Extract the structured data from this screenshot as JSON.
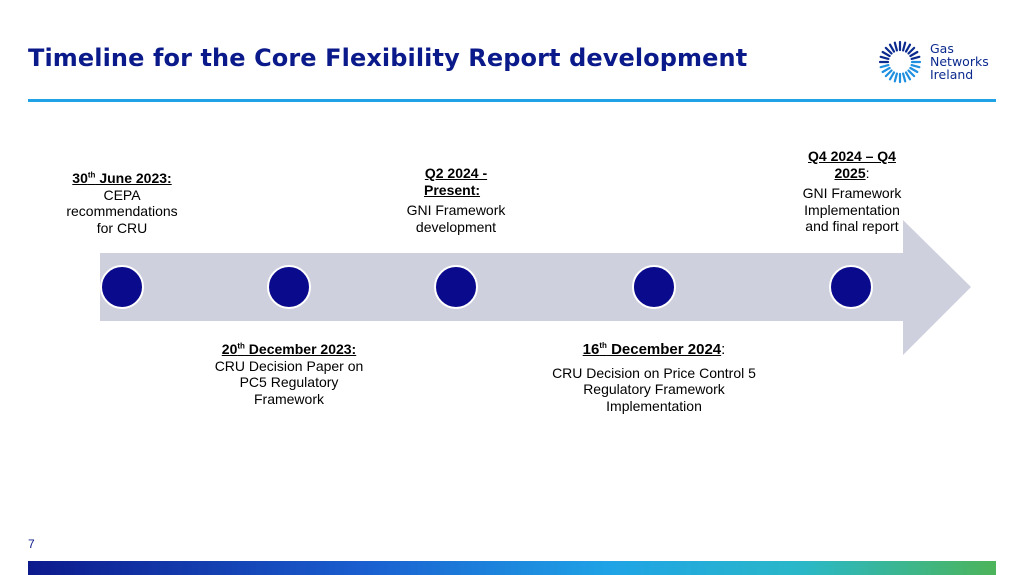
{
  "title": "Timeline for the Core Flexibility Report development",
  "logo": {
    "line1": "Gas",
    "line2": "Networks",
    "line3": "Ireland",
    "icon": "gas-networks-ireland-ring-logo",
    "color": "#0b2a8e"
  },
  "colors": {
    "title": "#0b1a8a",
    "rule": "#1fa3e6",
    "arrow": "#ced0de",
    "node": "#0a0a8c"
  },
  "events": [
    {
      "date_main": "30",
      "date_sup": "th",
      "date_rest": " June 2023:",
      "sep": "",
      "body": [
        "CEPA",
        "recommendations",
        "for CRU"
      ]
    },
    {
      "date_main": "20",
      "date_sup": "th",
      "date_rest": " December 2023:",
      "sep": "",
      "body": [
        "CRU Decision Paper on",
        "PC5 Regulatory",
        "Framework"
      ]
    },
    {
      "date_main": "Q2 2024 -",
      "date_sup": "",
      "date_rest": "Present: ",
      "sep": "",
      "body": [
        "GNI Framework",
        "development"
      ]
    },
    {
      "date_main": "16",
      "date_sup": "th",
      "date_rest": " December 2024",
      "sep": ":",
      "body": [
        "CRU Decision on Price Control 5",
        "Regulatory Framework",
        "Implementation"
      ]
    },
    {
      "date_main": "Q4 2024 – Q4",
      "date_sup": "",
      "date_rest": "2025",
      "sep": ":",
      "body": [
        "GNI Framework",
        "Implementation",
        "and final report"
      ]
    }
  ],
  "page_number": "7"
}
